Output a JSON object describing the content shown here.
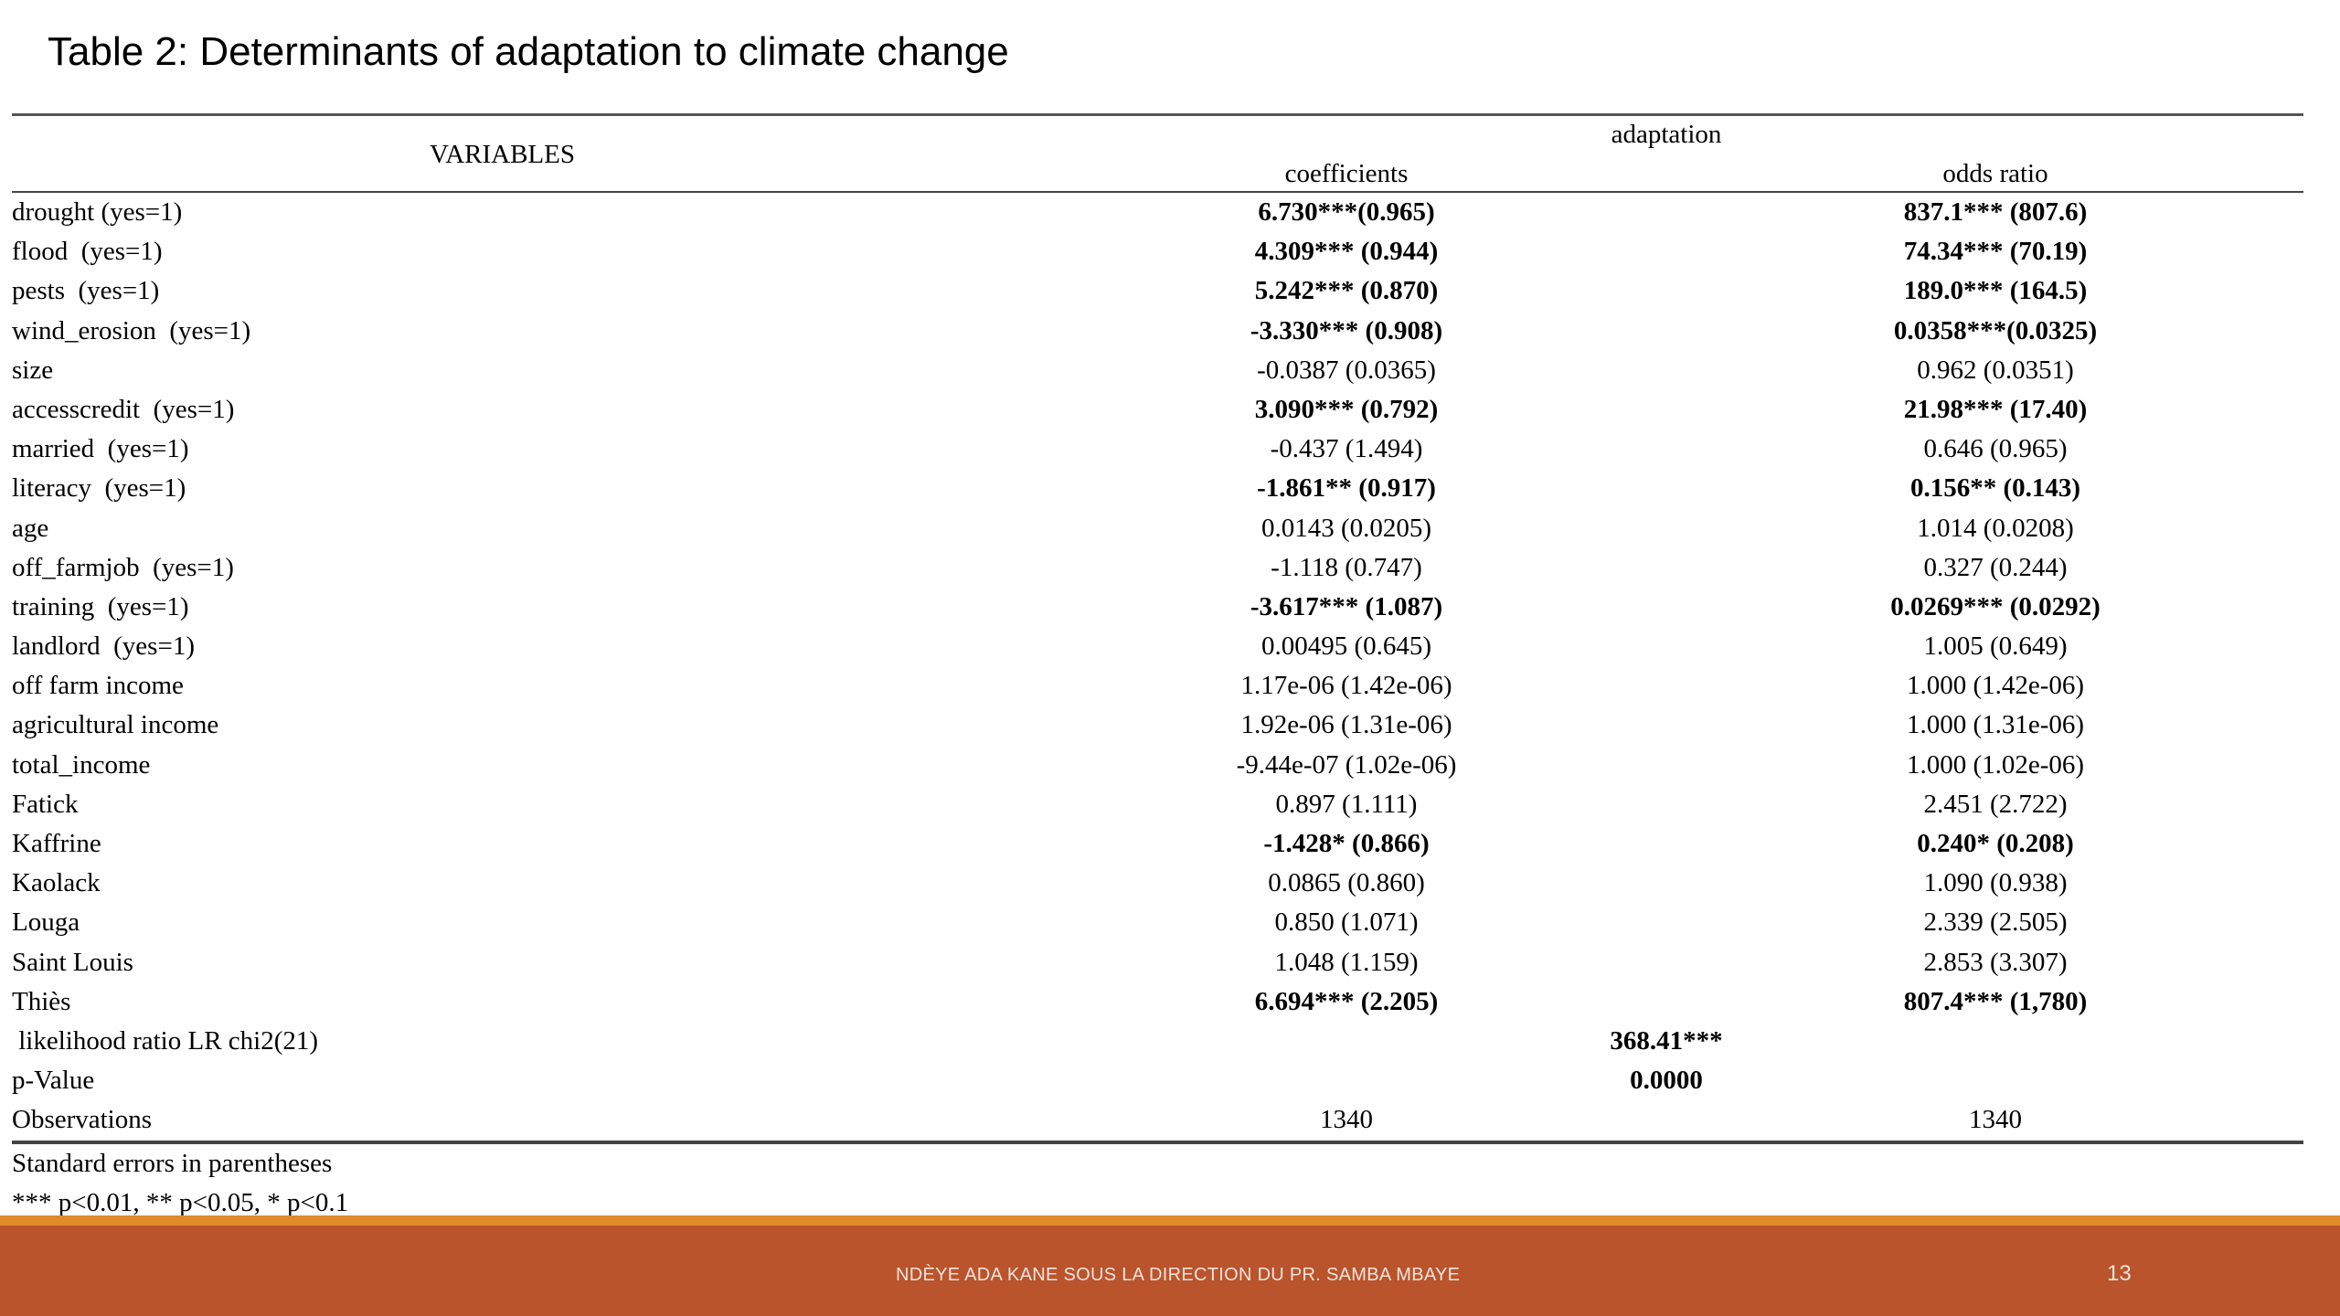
{
  "slide": {
    "title": "Table 2: Determinants of adaptation to climate change",
    "footer_text": "NDÈYE ADA KANE SOUS LA DIRECTION DU PR. SAMBA MBAYE",
    "page_number": "13"
  },
  "table": {
    "header": {
      "variables": "VARIABLES",
      "group": "adaptation",
      "coefficients": "coefficients",
      "odds_ratio": "odds ratio"
    },
    "rows": [
      {
        "variable": "drought (yes=1)",
        "coefficient": "6.730***(0.965)",
        "odds_ratio": "837.1*** (807.6)",
        "bold": true
      },
      {
        "variable": "flood  (yes=1)",
        "coefficient": "4.309*** (0.944)",
        "odds_ratio": "74.34*** (70.19)",
        "bold": true
      },
      {
        "variable": "pests  (yes=1)",
        "coefficient": "5.242*** (0.870)",
        "odds_ratio": "189.0*** (164.5)",
        "bold": true
      },
      {
        "variable": "wind_erosion  (yes=1)",
        "coefficient": "-3.330*** (0.908)",
        "odds_ratio": "0.0358***(0.0325)",
        "bold": true
      },
      {
        "variable": "size",
        "coefficient": "-0.0387 (0.0365)",
        "odds_ratio": "0.962 (0.0351)",
        "bold": false
      },
      {
        "variable": "accesscredit  (yes=1)",
        "coefficient": "3.090*** (0.792)",
        "odds_ratio": "21.98*** (17.40)",
        "bold": true
      },
      {
        "variable": "married  (yes=1)",
        "coefficient": "-0.437 (1.494)",
        "odds_ratio": "0.646 (0.965)",
        "bold": false
      },
      {
        "variable": "literacy  (yes=1)",
        "coefficient": "-1.861** (0.917)",
        "odds_ratio": "0.156** (0.143)",
        "bold": true
      },
      {
        "variable": "age",
        "coefficient": "0.0143 (0.0205)",
        "odds_ratio": "1.014 (0.0208)",
        "bold": false
      },
      {
        "variable": "off_farmjob  (yes=1)",
        "coefficient": "-1.118 (0.747)",
        "odds_ratio": "0.327 (0.244)",
        "bold": false
      },
      {
        "variable": "training  (yes=1)",
        "coefficient": "-3.617*** (1.087)",
        "odds_ratio": "0.0269*** (0.0292)",
        "bold": true
      },
      {
        "variable": "landlord  (yes=1)",
        "coefficient": "0.00495 (0.645)",
        "odds_ratio": "1.005 (0.649)",
        "bold": false
      },
      {
        "variable": "off farm income",
        "coefficient": "1.17e-06 (1.42e-06)",
        "odds_ratio": "1.000 (1.42e-06)",
        "bold": false
      },
      {
        "variable": "agricultural income",
        "coefficient": "1.92e-06 (1.31e-06)",
        "odds_ratio": "1.000 (1.31e-06)",
        "bold": false
      },
      {
        "variable": "total_income",
        "coefficient": "-9.44e-07 (1.02e-06)",
        "odds_ratio": "1.000 (1.02e-06)",
        "bold": false
      },
      {
        "variable": "Fatick",
        "coefficient": "0.897 (1.111)",
        "odds_ratio": "2.451 (2.722)",
        "bold": false
      },
      {
        "variable": "Kaffrine",
        "coefficient": "-1.428* (0.866)",
        "odds_ratio": "0.240* (0.208)",
        "bold": true
      },
      {
        "variable": "Kaolack",
        "coefficient": "0.0865 (0.860)",
        "odds_ratio": "1.090 (0.938)",
        "bold": false
      },
      {
        "variable": "Louga",
        "coefficient": "0.850 (1.071)",
        "odds_ratio": "2.339 (2.505)",
        "bold": false
      },
      {
        "variable": "Saint Louis",
        "coefficient": "1.048 (1.159)",
        "odds_ratio": "2.853 (3.307)",
        "bold": false
      },
      {
        "variable": "Thiès",
        "coefficient": "6.694*** (2.205)",
        "odds_ratio": "807.4*** (1,780)",
        "bold": true
      }
    ],
    "likelihood": {
      "label": " likelihood ratio LR chi2(21)",
      "value": "368.41***"
    },
    "pvalue": {
      "label": "p-Value",
      "value": "0.0000"
    },
    "observations": {
      "label": "Observations",
      "coefficient": "1340",
      "odds_ratio": "1340"
    },
    "notes": [
      "Standard errors in parentheses",
      "*** p<0.01, ** p<0.05, * p<0.1"
    ]
  }
}
